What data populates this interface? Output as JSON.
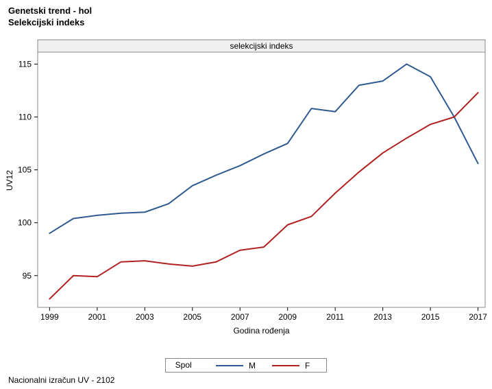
{
  "title_line1": "Genetski trend - hol",
  "title_line2": "Selekcijski indeks",
  "footer": "Nacionalni izračun UV - 2102",
  "chart": {
    "type": "line",
    "banner_label": "selekcijski indeks",
    "x_label": "Godina rođenja",
    "y_label": "UV12",
    "legend_title": "Spol",
    "xlim": [
      1998.5,
      2017.3
    ],
    "ylim": [
      92,
      116
    ],
    "x_ticks": [
      1999,
      2001,
      2003,
      2005,
      2007,
      2009,
      2011,
      2013,
      2015,
      2017
    ],
    "y_ticks": [
      95,
      100,
      105,
      110,
      115
    ],
    "background_color": "#ffffff",
    "plot_border_color": "#888888",
    "banner_bg": "#f0f0f0",
    "banner_border": "#888888",
    "tick_color": "#000000",
    "axis_fontsize": 12,
    "series": [
      {
        "name": "M",
        "color": "#2f5a8f",
        "line_width": 2,
        "x": [
          1999,
          2000,
          2001,
          2002,
          2003,
          2004,
          2005,
          2006,
          2007,
          2008,
          2009,
          2010,
          2011,
          2012,
          2013,
          2014,
          2015,
          2016,
          2017
        ],
        "y": [
          99.0,
          100.4,
          100.7,
          100.9,
          101.0,
          101.8,
          103.5,
          104.5,
          105.4,
          106.5,
          107.5,
          110.8,
          110.5,
          113.0,
          113.4,
          115.0,
          113.8,
          110.0,
          105.6
        ]
      },
      {
        "name": "F",
        "color": "#b02020",
        "line_width": 2,
        "x": [
          1999,
          2000,
          2001,
          2002,
          2003,
          2004,
          2005,
          2006,
          2007,
          2008,
          2009,
          2010,
          2011,
          2012,
          2013,
          2014,
          2015,
          2016,
          2017
        ],
        "y": [
          92.8,
          95.0,
          94.9,
          96.3,
          96.4,
          96.1,
          95.9,
          96.3,
          97.4,
          97.7,
          99.8,
          100.6,
          102.8,
          104.8,
          106.6,
          108.0,
          109.3,
          110.0,
          112.3
        ]
      }
    ]
  }
}
